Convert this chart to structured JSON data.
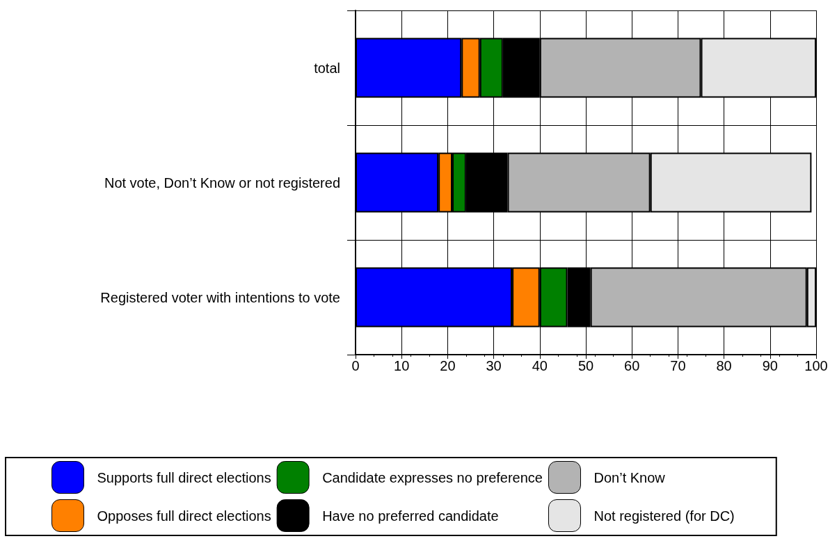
{
  "chart_data": {
    "type": "bar",
    "orientation": "horizontal",
    "stacked": true,
    "categories": [
      "total",
      "Not vote, Don’t Know or not registered",
      "Registered voter with intentions to vote"
    ],
    "series": [
      {
        "name": "Supports full direct elections",
        "color": "#0000ff",
        "values": [
          23,
          18,
          34
        ]
      },
      {
        "name": "Opposes full direct elections",
        "color": "#ff8000",
        "values": [
          4,
          3,
          6
        ]
      },
      {
        "name": "Candidate expresses no preference",
        "color": "#008000",
        "values": [
          5,
          3,
          6
        ]
      },
      {
        "name": "Have no preferred candidate",
        "color": "#000000",
        "values": [
          8,
          9,
          5
        ]
      },
      {
        "name": "Don’t Know",
        "color": "#b3b3b3",
        "values": [
          35,
          31,
          47
        ]
      },
      {
        "name": "Not registered (for DC)",
        "color": "#e5e5e5",
        "values": [
          25,
          35,
          2
        ]
      }
    ],
    "xlim": [
      0,
      100
    ],
    "xticks": [
      0,
      10,
      20,
      30,
      40,
      50,
      60,
      70,
      80,
      90,
      100
    ],
    "grid": true,
    "legend": "bottom"
  }
}
